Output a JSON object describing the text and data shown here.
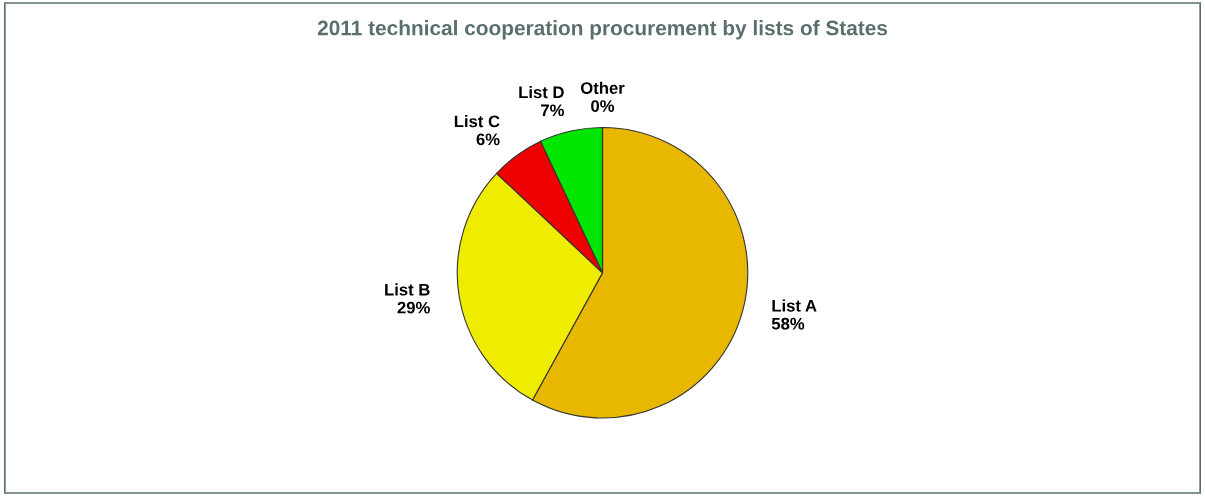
{
  "chart_data": {
    "type": "pie",
    "title": "2011 technical cooperation procurement by lists of States",
    "categories": [
      "List A",
      "List B",
      "List C",
      "List D",
      "Other"
    ],
    "values": [
      58,
      29,
      6,
      7,
      0
    ],
    "value_labels": [
      "58%",
      "29%",
      "6%",
      "7%",
      "0%"
    ],
    "colors": [
      "#e8b800",
      "#f0ec00",
      "#ee0000",
      "#00e600",
      "#0000aa"
    ],
    "legend": false
  }
}
